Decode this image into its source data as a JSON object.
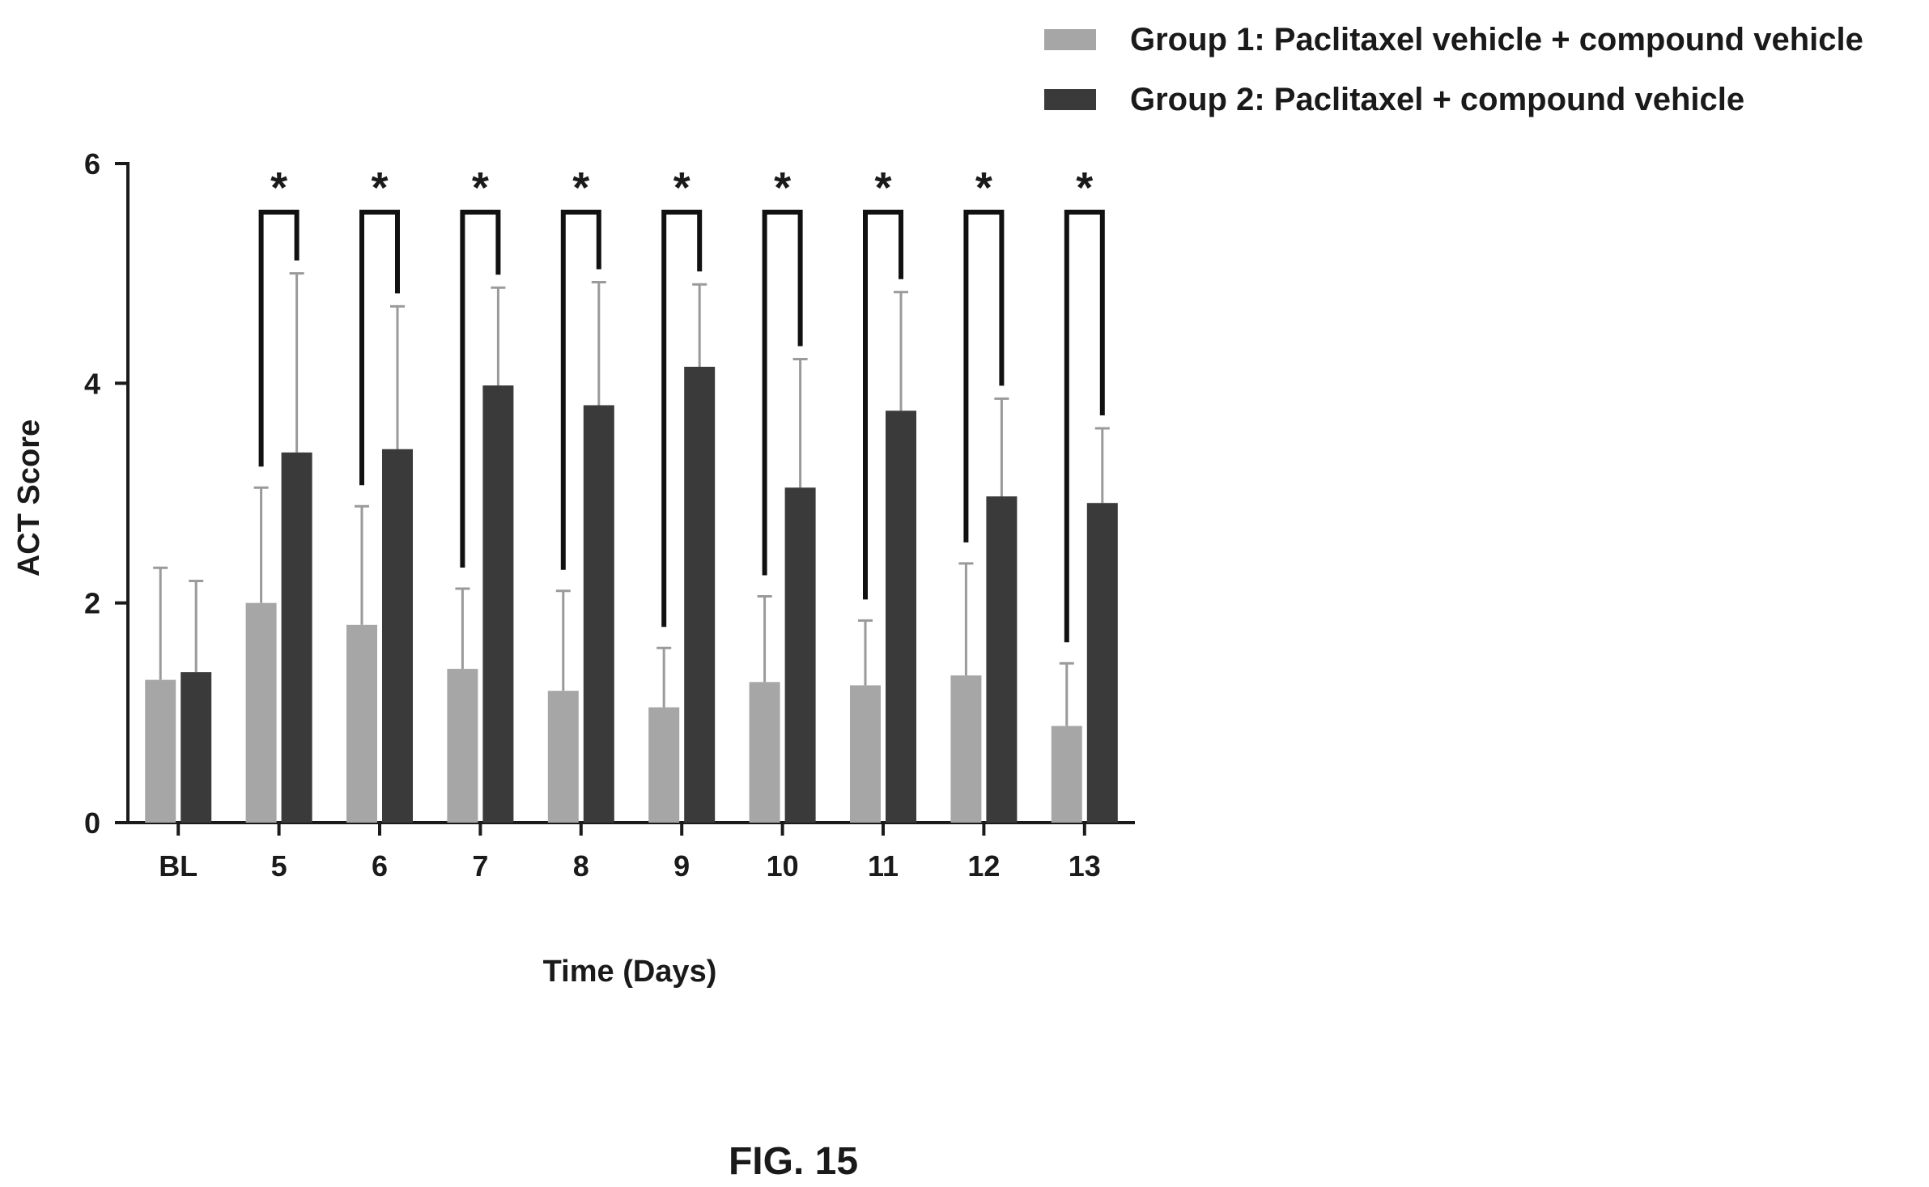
{
  "caption": "FIG. 15",
  "chart_data": {
    "type": "bar",
    "xlabel": "Time (Days)",
    "ylabel": "ACT Score",
    "ylim": [
      0,
      6
    ],
    "yticks": [
      "0",
      "2",
      "4",
      "6"
    ],
    "categories": [
      "BL",
      "5",
      "6",
      "7",
      "8",
      "9",
      "10",
      "11",
      "12",
      "13"
    ],
    "legend_position": "top-right",
    "series": [
      {
        "name": "Group 1: Paclitaxel vehicle + compound vehicle",
        "color": "#a6a6a6",
        "values": [
          1.3,
          2.0,
          1.8,
          1.4,
          1.2,
          1.05,
          1.28,
          1.25,
          1.34,
          0.88
        ],
        "errors": [
          1.02,
          1.05,
          1.08,
          0.73,
          0.91,
          0.54,
          0.78,
          0.59,
          1.02,
          0.57
        ]
      },
      {
        "name": "Group 2: Paclitaxel + compound vehicle",
        "color": "#3a3a3a",
        "values": [
          1.37,
          3.37,
          3.4,
          3.98,
          3.8,
          4.15,
          3.05,
          3.75,
          2.97,
          2.91
        ],
        "errors": [
          0.83,
          1.63,
          1.3,
          0.89,
          1.12,
          0.75,
          1.17,
          1.08,
          0.89,
          0.68
        ]
      }
    ],
    "significance": [
      {
        "category": "5",
        "label": "*"
      },
      {
        "category": "6",
        "label": "*"
      },
      {
        "category": "7",
        "label": "*"
      },
      {
        "category": "8",
        "label": "*"
      },
      {
        "category": "9",
        "label": "*"
      },
      {
        "category": "10",
        "label": "*"
      },
      {
        "category": "11",
        "label": "*"
      },
      {
        "category": "12",
        "label": "*"
      },
      {
        "category": "13",
        "label": "*"
      }
    ]
  }
}
